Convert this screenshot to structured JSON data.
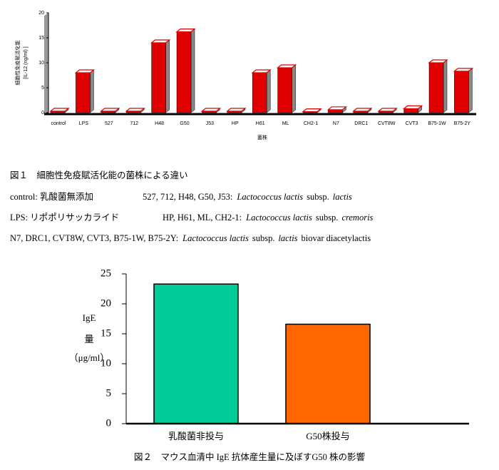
{
  "chart_data": [
    {
      "type": "bar3d",
      "ylabel": [
        "細胞性免疫賦活化能",
        "[IL-12 (ng/ml) ]"
      ],
      "xlabel": "菌株",
      "categories": [
        "control",
        "LPS",
        "527",
        "712",
        "H48",
        "G50",
        "J53",
        "HP",
        "H61",
        "ML",
        "CH2-1",
        "N7",
        "DRC1",
        "CVT8W",
        "CVT3",
        "B75-1W",
        "B75-2Y"
      ],
      "values": [
        0.3,
        8,
        0.3,
        0.3,
        14,
        16.2,
        0.3,
        0.3,
        8,
        9,
        0.2,
        0.6,
        0.3,
        0.3,
        0.8,
        10,
        8.3
      ],
      "color": "#e00000",
      "ylim": [
        0,
        20
      ],
      "yticks": [
        0,
        5,
        10,
        15,
        20
      ],
      "caption": "図１　細胞性免疫賦活化能の菌株による違い",
      "notes": [
        [
          "control: 乳酸菌無添加",
          "527, 712, H48, G50, J53:",
          "Lactococcus lactis",
          "subsp.",
          "lactis"
        ],
        [
          "LPS: リポポリサッカライド",
          "HP, H61, ML, CH2-1:",
          "Lactococcus lactis",
          "subsp.",
          "cremoris"
        ],
        [
          "N7, DRC1, CVT8W, CVT3, B75-1W, B75-2Y:",
          "Lactococcus lactis",
          "subsp.",
          "lactis",
          "biovar diacetylactis"
        ]
      ]
    },
    {
      "type": "bar",
      "ylabel": [
        "IgE",
        "量",
        "（μg/ml）"
      ],
      "categories": [
        "乳酸菌非投与",
        "G50株投与"
      ],
      "values": [
        23.3,
        16.6
      ],
      "colors": [
        "#00cc99",
        "#ff6600"
      ],
      "ylim": [
        0,
        25
      ],
      "yticks": [
        0,
        5,
        10,
        15,
        20,
        25
      ],
      "caption": "図２　マウス血清中 IgE 抗体産生量に及ぼすG50 株の影響"
    }
  ]
}
